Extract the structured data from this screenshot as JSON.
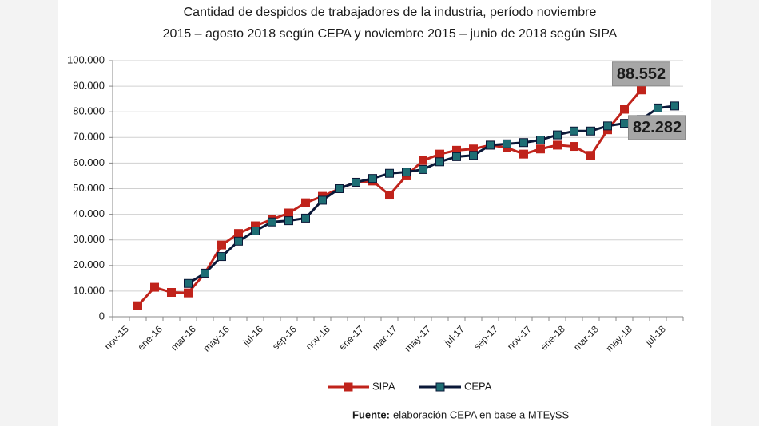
{
  "chart_data": {
    "type": "line",
    "title": "Cantidad de despidos de trabajadores de la industria, período noviembre",
    "subtitle": "2015 – agosto 2018 según CEPA y noviembre 2015 – junio de 2018 según SIPA",
    "source_label": "Fuente:",
    "source": "elaboración CEPA en base a MTEySS",
    "categories": [
      "nov-15",
      null,
      "ene-16",
      null,
      "mar-16",
      null,
      "may-16",
      null,
      "jul-16",
      null,
      "sep-16",
      null,
      "nov-16",
      null,
      "ene-17",
      null,
      "mar-17",
      null,
      "may-17",
      null,
      "jul-17",
      null,
      "sep-17",
      null,
      "nov-17",
      null,
      "ene-18",
      null,
      "mar-18",
      null,
      "may-18",
      null,
      "jul-18",
      null
    ],
    "series": [
      {
        "name": "SIPA",
        "color": "#c0231b",
        "marker_color": "#c0231b",
        "values": [
          null,
          4300,
          11500,
          9500,
          9300,
          17000,
          28000,
          32500,
          35500,
          38000,
          40500,
          44500,
          47000,
          50000,
          52500,
          53000,
          47500,
          55000,
          61000,
          63500,
          65000,
          65500,
          67000,
          66000,
          63500,
          65500,
          67000,
          66500,
          63000,
          73000,
          81000,
          88552,
          null,
          null
        ],
        "value_labels": [
          null,
          null,
          null,
          null,
          null,
          null,
          null,
          null,
          null,
          null,
          null,
          null,
          null,
          null,
          null,
          null,
          null,
          null,
          null,
          null,
          null,
          null,
          null,
          null,
          null,
          null,
          null,
          null,
          null,
          null,
          null,
          "88.552",
          null,
          null
        ]
      },
      {
        "name": "CEPA",
        "color": "#0b1838",
        "marker_color": "#1e6e74",
        "values": [
          null,
          null,
          null,
          null,
          13000,
          17000,
          23500,
          29500,
          33500,
          37000,
          37500,
          38500,
          45500,
          50000,
          52500,
          54000,
          56000,
          56500,
          57500,
          60500,
          62500,
          63000,
          67000,
          67500,
          68000,
          69000,
          71000,
          72500,
          72500,
          74500,
          75500,
          77000,
          81500,
          82282
        ],
        "value_labels": [
          null,
          null,
          null,
          null,
          null,
          null,
          null,
          null,
          null,
          null,
          null,
          null,
          null,
          null,
          null,
          null,
          null,
          null,
          null,
          null,
          null,
          null,
          null,
          null,
          null,
          null,
          null,
          null,
          null,
          null,
          null,
          null,
          null,
          "82.282"
        ]
      }
    ],
    "ylim": [
      0,
      100000
    ],
    "yticks": [
      0,
      {
        "value": 10000,
        "label": "10.000"
      },
      {
        "value": 20000,
        "label": "20.000"
      },
      {
        "value": 30000,
        "label": "30.000"
      },
      {
        "value": 40000,
        "label": "40.000"
      },
      {
        "value": 50000,
        "label": "50.000"
      },
      {
        "value": 60000,
        "label": "60.000"
      },
      {
        "value": 70000,
        "label": "70.000"
      },
      {
        "value": 80000,
        "label": "80.000"
      },
      {
        "value": 90000,
        "label": "90.000"
      },
      {
        "value": 100000,
        "label": "100.000"
      }
    ],
    "grid": true,
    "legend": "bottom"
  }
}
